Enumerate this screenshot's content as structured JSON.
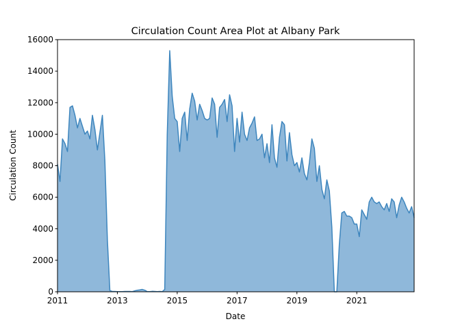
{
  "chart_data": {
    "type": "area",
    "title": "Circulation Count Area Plot at Albany Park",
    "xlabel": "Date",
    "ylabel": "Circulation Count",
    "x_start": "2011-01",
    "x_end": "2022-12",
    "xlim": [
      "2011-01",
      "2022-12"
    ],
    "ylim": [
      0,
      16000
    ],
    "x_ticks": [
      {
        "date": "2011-01",
        "label": "2011"
      },
      {
        "date": "2013-01",
        "label": "2013"
      },
      {
        "date": "2015-01",
        "label": "2015"
      },
      {
        "date": "2017-01",
        "label": "2017"
      },
      {
        "date": "2019-01",
        "label": "2019"
      },
      {
        "date": "2021-01",
        "label": "2021"
      }
    ],
    "y_ticks": [
      {
        "value": 0,
        "label": "0"
      },
      {
        "value": 2000,
        "label": "2000"
      },
      {
        "value": 4000,
        "label": "4000"
      },
      {
        "value": 6000,
        "label": "6000"
      },
      {
        "value": 8000,
        "label": "8000"
      },
      {
        "value": 10000,
        "label": "10000"
      },
      {
        "value": 12000,
        "label": "12000"
      },
      {
        "value": 14000,
        "label": "14000"
      },
      {
        "value": 16000,
        "label": "16000"
      }
    ],
    "grid": false,
    "legend": "none",
    "colors": {
      "fill": "#8fb8da",
      "line": "#3d85bd"
    },
    "series": [
      {
        "dates": [
          "2011-01",
          "2011-02",
          "2011-03",
          "2011-04",
          "2011-05",
          "2011-06",
          "2011-07",
          "2011-08",
          "2011-09",
          "2011-10",
          "2011-11",
          "2011-12",
          "2012-01",
          "2012-02",
          "2012-03",
          "2012-04",
          "2012-05",
          "2012-06",
          "2012-07",
          "2012-08",
          "2012-09",
          "2012-10",
          "2012-11",
          "2012-12",
          "2013-01",
          "2013-02",
          "2013-03",
          "2013-04",
          "2013-05",
          "2013-06",
          "2013-07",
          "2013-08",
          "2013-09",
          "2013-10",
          "2013-11",
          "2013-12",
          "2014-01",
          "2014-02",
          "2014-03",
          "2014-04",
          "2014-05",
          "2014-06",
          "2014-07",
          "2014-08",
          "2014-09",
          "2014-10",
          "2014-11",
          "2014-12",
          "2015-01",
          "2015-02",
          "2015-03",
          "2015-04",
          "2015-05",
          "2015-06",
          "2015-07",
          "2015-08",
          "2015-09",
          "2015-10",
          "2015-11",
          "2015-12",
          "2016-01",
          "2016-02",
          "2016-03",
          "2016-04",
          "2016-05",
          "2016-06",
          "2016-07",
          "2016-08",
          "2016-09",
          "2016-10",
          "2016-11",
          "2016-12",
          "2017-01",
          "2017-02",
          "2017-03",
          "2017-04",
          "2017-05",
          "2017-06",
          "2017-07",
          "2017-08",
          "2017-09",
          "2017-10",
          "2017-11",
          "2017-12",
          "2018-01",
          "2018-02",
          "2018-03",
          "2018-04",
          "2018-05",
          "2018-06",
          "2018-07",
          "2018-08",
          "2018-09",
          "2018-10",
          "2018-11",
          "2018-12",
          "2019-01",
          "2019-02",
          "2019-03",
          "2019-04",
          "2019-05",
          "2019-06",
          "2019-07",
          "2019-08",
          "2019-09",
          "2019-10",
          "2019-11",
          "2019-12",
          "2020-01",
          "2020-02",
          "2020-03",
          "2020-04",
          "2020-05",
          "2020-06",
          "2020-07",
          "2020-08",
          "2020-09",
          "2020-10",
          "2020-11",
          "2020-12",
          "2021-01",
          "2021-02",
          "2021-03",
          "2021-04",
          "2021-05",
          "2021-06",
          "2021-07",
          "2021-08",
          "2021-09",
          "2021-10",
          "2021-11",
          "2021-12",
          "2022-01",
          "2022-02",
          "2022-03",
          "2022-04",
          "2022-05",
          "2022-06",
          "2022-07",
          "2022-08",
          "2022-09",
          "2022-10",
          "2022-11",
          "2022-12"
        ],
        "values": [
          8100,
          7000,
          9700,
          9400,
          8900,
          11700,
          11800,
          11200,
          10400,
          11000,
          10500,
          10000,
          10200,
          9700,
          11200,
          10300,
          9000,
          10100,
          11200,
          8300,
          3300,
          80,
          20,
          20,
          10,
          10,
          10,
          20,
          20,
          20,
          10,
          60,
          100,
          120,
          150,
          100,
          10,
          10,
          30,
          20,
          10,
          20,
          10,
          150,
          10000,
          15300,
          12400,
          11000,
          10800,
          8900,
          11000,
          11400,
          9600,
          11600,
          12600,
          12100,
          10900,
          11900,
          11500,
          11000,
          10900,
          11000,
          12300,
          11900,
          9800,
          11700,
          11900,
          12200,
          10800,
          12500,
          11800,
          8900,
          11000,
          9500,
          11400,
          10000,
          9600,
          10400,
          10700,
          11100,
          9600,
          9700,
          10000,
          8500,
          9400,
          8200,
          10600,
          8500,
          7900,
          9800,
          10800,
          10600,
          8300,
          10100,
          8700,
          8000,
          8200,
          7600,
          8500,
          7500,
          7100,
          8200,
          9700,
          9100,
          7000,
          8000,
          6500,
          5900,
          7100,
          6400,
          4100,
          0,
          0,
          3000,
          5000,
          5100,
          4800,
          4800,
          4700,
          4300,
          4300,
          3500,
          5200,
          4900,
          4600,
          5700,
          6000,
          5700,
          5600,
          5700,
          5400,
          5200,
          5600,
          5100,
          5900,
          5700,
          4700,
          5500,
          6000,
          5700,
          5300,
          5000,
          5400,
          4700
        ]
      }
    ]
  }
}
